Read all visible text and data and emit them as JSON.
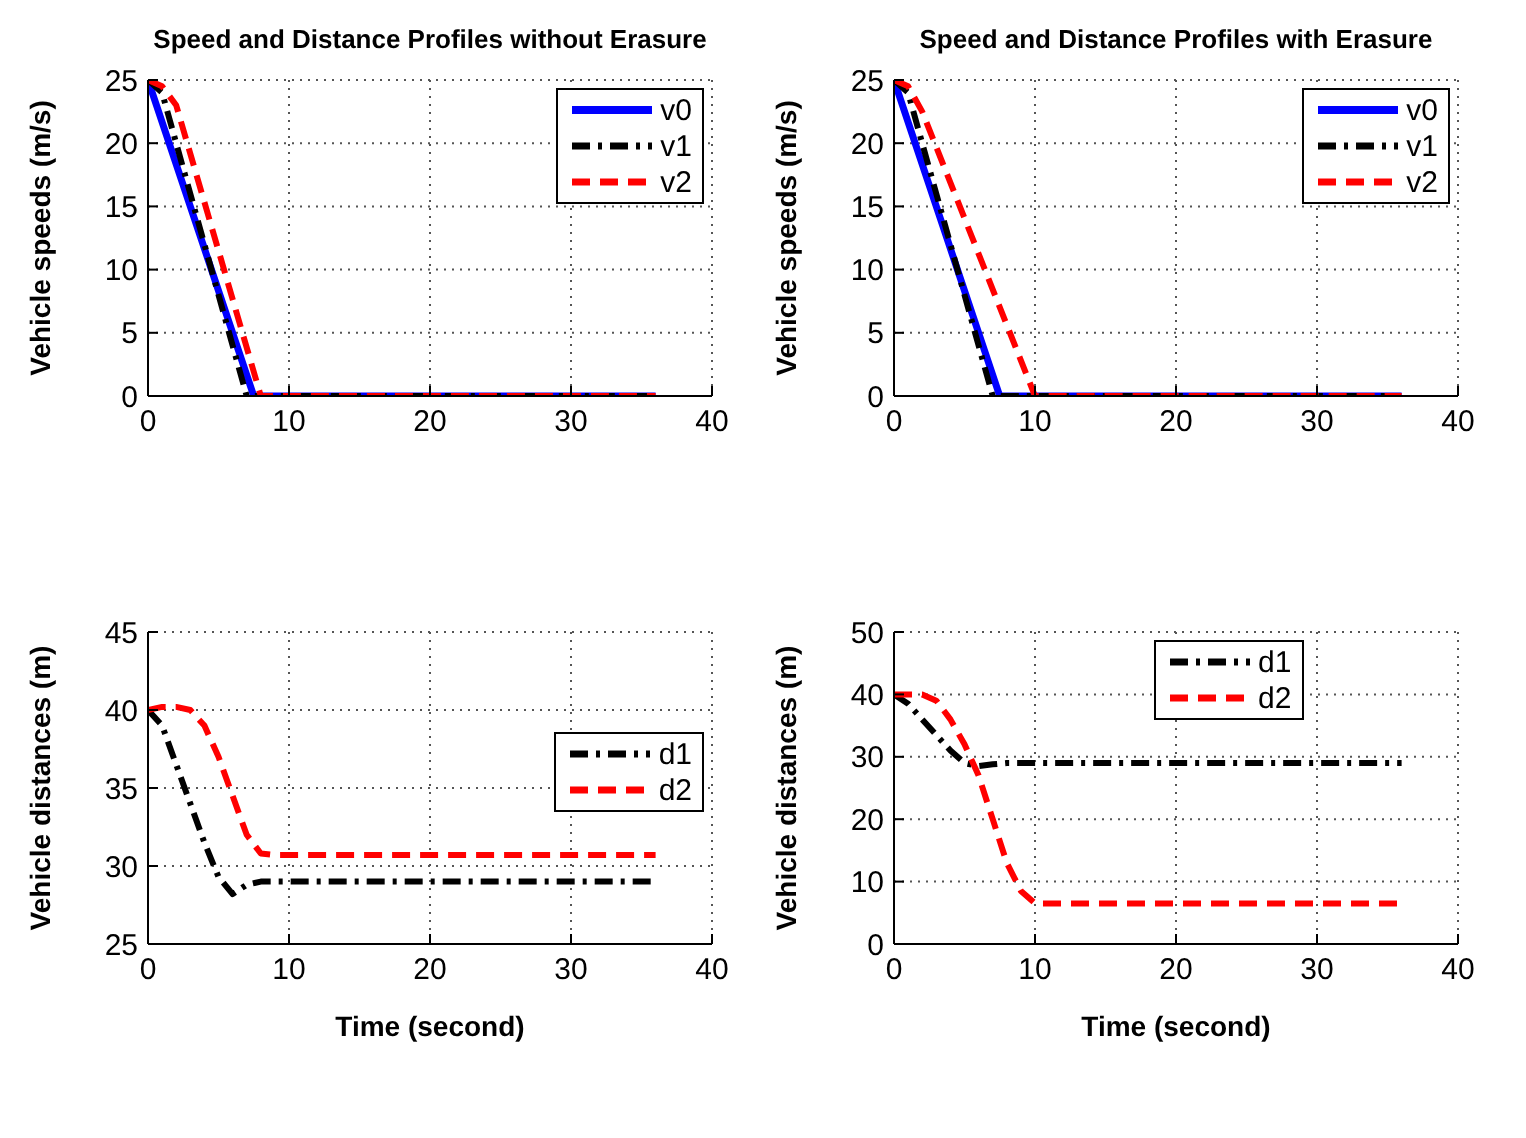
{
  "chart_data": [
    {
      "type": "line",
      "title": "Speed and Distance Profiles without Erasure",
      "ylabel": "Vehicle speeds (m/s)",
      "xlim": [
        0,
        40
      ],
      "xticks": [
        0,
        10,
        20,
        30,
        40
      ],
      "ylim": [
        0,
        25
      ],
      "yticks": [
        0,
        5,
        10,
        15,
        20,
        25
      ],
      "grid": true,
      "legend": "top right",
      "marker": "none",
      "series": [
        {
          "name": "v0",
          "color": "#0000ff",
          "line_style": "solid",
          "x": [
            0,
            7.5,
            36
          ],
          "values": [
            25,
            0,
            0
          ]
        },
        {
          "name": "v1",
          "color": "#000000",
          "line_style": "dashdot",
          "x": [
            0,
            1,
            7,
            36
          ],
          "values": [
            25,
            24,
            0,
            0
          ]
        },
        {
          "name": "v2",
          "color": "#ff0000",
          "line_style": "dashed",
          "x": [
            0,
            1,
            2,
            8,
            36
          ],
          "values": [
            25,
            24.5,
            23,
            0,
            0
          ]
        }
      ]
    },
    {
      "type": "line",
      "title": "Speed and Distance Profiles with Erasure",
      "ylabel": "Vehicle speeds (m/s)",
      "xlim": [
        0,
        40
      ],
      "xticks": [
        0,
        10,
        20,
        30,
        40
      ],
      "ylim": [
        0,
        25
      ],
      "yticks": [
        0,
        5,
        10,
        15,
        20,
        25
      ],
      "grid": true,
      "legend": "top right",
      "marker": "none",
      "series": [
        {
          "name": "v0",
          "color": "#0000ff",
          "line_style": "solid",
          "x": [
            0,
            7.5,
            36
          ],
          "values": [
            25,
            0,
            0
          ]
        },
        {
          "name": "v1",
          "color": "#000000",
          "line_style": "dashdot",
          "x": [
            0,
            1,
            7,
            36
          ],
          "values": [
            25,
            24,
            0,
            0
          ]
        },
        {
          "name": "v2",
          "color": "#ff0000",
          "line_style": "dashed",
          "x": [
            0,
            1,
            2,
            10,
            36
          ],
          "values": [
            25,
            24.5,
            22.5,
            0,
            0
          ]
        }
      ]
    },
    {
      "type": "line",
      "xlabel": "Time (second)",
      "ylabel": "Vehicle distances (m)",
      "xlim": [
        0,
        40
      ],
      "xticks": [
        0,
        10,
        20,
        30,
        40
      ],
      "ylim": [
        25,
        45
      ],
      "yticks": [
        25,
        30,
        35,
        40,
        45
      ],
      "grid": true,
      "legend": "right",
      "marker": "none",
      "series": [
        {
          "name": "d1",
          "color": "#000000",
          "line_style": "dashdot",
          "x": [
            0,
            1,
            2,
            3,
            4,
            5,
            6,
            7,
            8,
            36
          ],
          "values": [
            40,
            39,
            36.5,
            34,
            31.5,
            29.3,
            28.2,
            28.8,
            29,
            29
          ]
        },
        {
          "name": "d2",
          "color": "#ff0000",
          "line_style": "dashed",
          "x": [
            0,
            1,
            2,
            3,
            4,
            5,
            6,
            7,
            8,
            9,
            36
          ],
          "values": [
            40,
            40.2,
            40.2,
            40,
            39,
            37,
            34.5,
            32,
            30.8,
            30.7,
            30.7
          ]
        }
      ]
    },
    {
      "type": "line",
      "xlabel": "Time (second)",
      "ylabel": "Vehicle distances (m)",
      "xlim": [
        0,
        40
      ],
      "xticks": [
        0,
        10,
        20,
        30,
        40
      ],
      "ylim": [
        0,
        50
      ],
      "yticks": [
        0,
        10,
        20,
        30,
        40,
        50
      ],
      "grid": true,
      "legend": "top",
      "marker": "none",
      "series": [
        {
          "name": "d1",
          "color": "#000000",
          "line_style": "dashdot",
          "x": [
            0,
            1,
            2,
            3,
            4,
            5,
            6,
            7,
            8,
            36
          ],
          "values": [
            40,
            38.5,
            36,
            33.5,
            31,
            29,
            28.5,
            28.8,
            29,
            29
          ]
        },
        {
          "name": "d2",
          "color": "#ff0000",
          "line_style": "dashed",
          "x": [
            0,
            2,
            3,
            4,
            5,
            6,
            7,
            8,
            9,
            10,
            11,
            36
          ],
          "values": [
            40,
            40,
            39,
            36,
            32,
            27,
            20,
            13,
            8.5,
            6.5,
            6.5,
            6.5
          ]
        }
      ]
    }
  ]
}
